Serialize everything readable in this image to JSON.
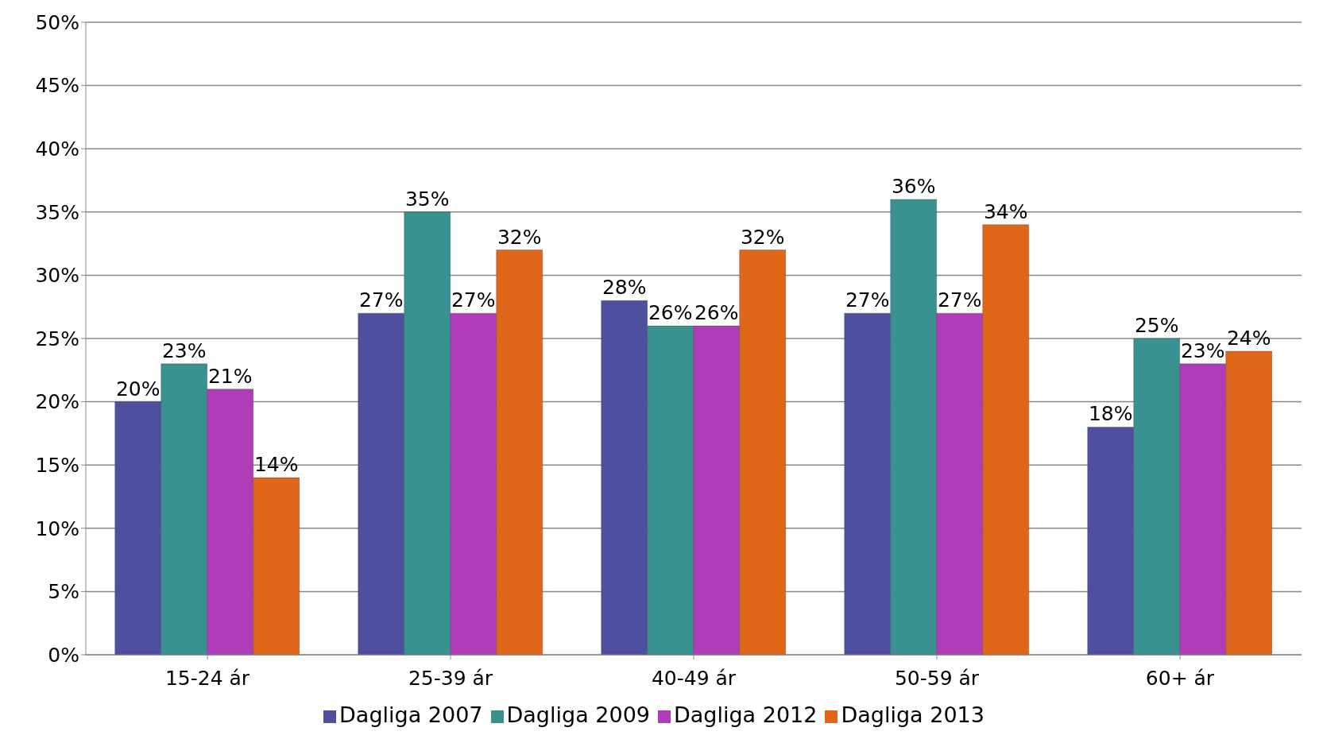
{
  "chart_data": {
    "type": "bar",
    "categories": [
      "15-24 ár",
      "25-39 ár",
      "40-49 ár",
      "50-59 ár",
      "60+ ár"
    ],
    "series": [
      {
        "name": "Dagliga 2007",
        "color": "#4f4f9f",
        "values": [
          20,
          27,
          28,
          27,
          18
        ],
        "value_labels": [
          "20%",
          "27%",
          "28%",
          "27%",
          "18%"
        ]
      },
      {
        "name": "Dagliga 2009",
        "color": "#3a9191",
        "values": [
          23,
          35,
          26,
          36,
          25
        ],
        "value_labels": [
          "23%",
          "35%",
          "26%",
          "36%",
          "25%"
        ]
      },
      {
        "name": "Dagliga 2012",
        "color": "#b03cb8",
        "values": [
          21,
          27,
          26,
          27,
          23
        ],
        "value_labels": [
          "21%",
          "27%",
          "26%",
          "27%",
          "23%"
        ]
      },
      {
        "name": "Dagliga 2013",
        "color": "#e0661a",
        "values": [
          14,
          32,
          32,
          34,
          24
        ],
        "value_labels": [
          "14%",
          "32%",
          "32%",
          "34%",
          "24%"
        ]
      }
    ],
    "ylim": [
      0,
      50
    ],
    "yticks": [
      {
        "value": 0,
        "label": "0%"
      },
      {
        "value": 5,
        "label": "5%"
      },
      {
        "value": 10,
        "label": "10%"
      },
      {
        "value": 15,
        "label": "15%"
      },
      {
        "value": 20,
        "label": "20%"
      },
      {
        "value": 25,
        "label": "25%"
      },
      {
        "value": 30,
        "label": "30%"
      },
      {
        "value": 35,
        "label": "35%"
      },
      {
        "value": 40,
        "label": "40%"
      },
      {
        "value": 45,
        "label": "45%"
      },
      {
        "value": 50,
        "label": "50%"
      }
    ],
    "grid": "y",
    "legend": "bottom"
  }
}
